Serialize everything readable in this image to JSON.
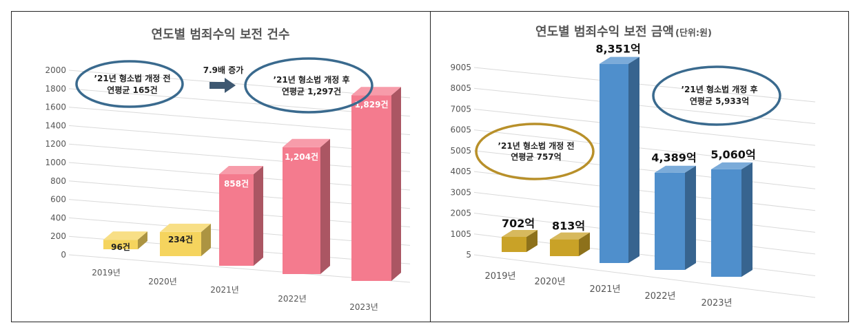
{
  "chart_data": [
    {
      "type": "bar",
      "title": "연도별 범죄수익 보전 건수",
      "categories": [
        "2019년",
        "2020년",
        "2021년",
        "2022년",
        "2023년"
      ],
      "values": [
        96,
        234,
        858,
        1204,
        1829
      ],
      "data_labels": [
        "96건",
        "234건",
        "858건",
        "1,204건",
        "1,829건"
      ],
      "ylim": [
        0,
        2000
      ],
      "yticks": [
        "0",
        "200",
        "400",
        "600",
        "800",
        "1000",
        "1200",
        "1400",
        "1600",
        "1800",
        "2000"
      ],
      "grid": true,
      "legend": "none",
      "colors": {
        "before": "#F5D45E",
        "after": "#F47B8E"
      },
      "annotations": {
        "before_line1": "’21년 형소법 개정 전",
        "before_line2": "연평균 165건",
        "arrow_label": "7.9배 증가",
        "after_line1": "’21년 형소법 개정 후",
        "after_line2": "연평균 1,297건"
      }
    },
    {
      "type": "bar",
      "title": "연도별 범죄수익 보전 금액",
      "title_unit": "(단위:원)",
      "categories": [
        "2019년",
        "2020년",
        "2021년",
        "2022년",
        "2023년"
      ],
      "values": [
        702,
        813,
        8351,
        4389,
        5060
      ],
      "data_labels": [
        "702억",
        "813억",
        "8,351억",
        "4,389억",
        "5,060억"
      ],
      "ylim": [
        5,
        9005
      ],
      "yticks": [
        "5",
        "1005",
        "2005",
        "3005",
        "4005",
        "5005",
        "6005",
        "7005",
        "8005",
        "9005"
      ],
      "grid": true,
      "legend": "none",
      "colors": {
        "before": "#C9A227",
        "after": "#4F8FCC"
      },
      "annotations": {
        "before_line1": "’21년 형소법 개정 전",
        "before_line2": "연평균 757억",
        "after_line1": "’21년 형소법 개정 후",
        "after_line2": "연평균 5,933억"
      }
    }
  ]
}
